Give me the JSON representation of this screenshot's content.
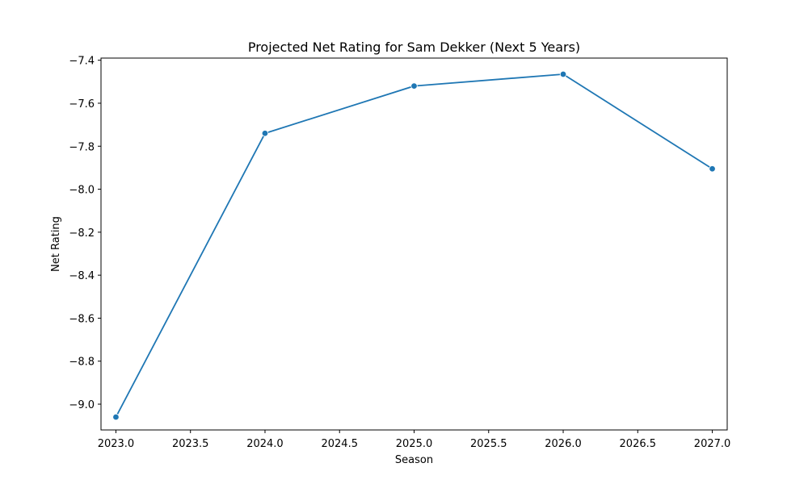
{
  "chart_data": {
    "type": "line",
    "title": "Projected Net Rating for Sam Dekker (Next 5 Years)",
    "xlabel": "Season",
    "ylabel": "Net Rating",
    "xlim": [
      2022.9,
      2027.1
    ],
    "ylim": [
      -9.12,
      -7.39
    ],
    "xticks": [
      2023.0,
      2023.5,
      2024.0,
      2024.5,
      2025.0,
      2025.5,
      2026.0,
      2026.5,
      2027.0
    ],
    "xtick_labels": [
      "2023.0",
      "2023.5",
      "2024.0",
      "2024.5",
      "2025.0",
      "2025.5",
      "2026.0",
      "2026.5",
      "2027.0"
    ],
    "yticks": [
      -7.4,
      -7.6,
      -7.8,
      -8.0,
      -8.2,
      -8.4,
      -8.6,
      -8.8,
      -9.0
    ],
    "ytick_labels": [
      "−7.4",
      "−7.6",
      "−7.8",
      "−8.0",
      "−8.2",
      "−8.4",
      "−8.6",
      "−8.8",
      "−9.0"
    ],
    "grid": false,
    "series": [
      {
        "x": [
          2023,
          2024,
          2025,
          2026,
          2027
        ],
        "values": [
          -9.06,
          -7.74,
          -7.52,
          -7.465,
          -7.905
        ],
        "color": "#1f77b4",
        "marker": "circle"
      }
    ]
  }
}
